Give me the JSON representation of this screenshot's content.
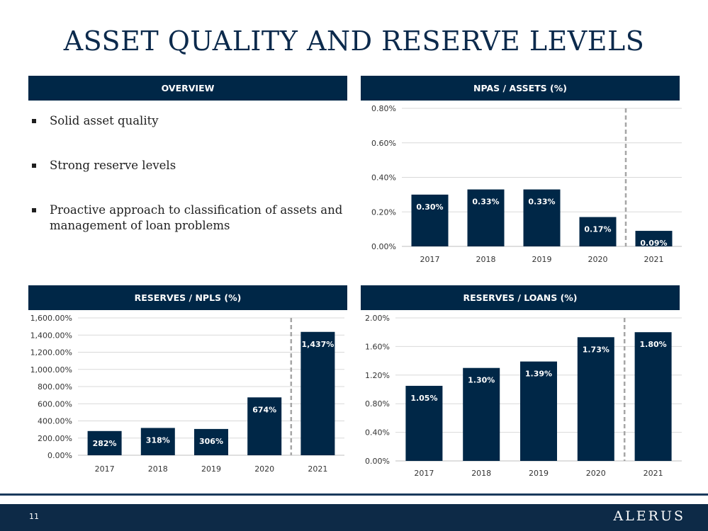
{
  "title": "ASSET QUALITY AND RESERVE LEVELS",
  "overview": {
    "header": "OVERVIEW",
    "bullets": [
      "Solid asset quality",
      "Strong reserve levels",
      "Proactive approach to classification of assets and management of loan problems"
    ]
  },
  "colors": {
    "bar": "#002747",
    "header": "#002747",
    "footer": "#0d2a47",
    "divider": "#a6a6a6",
    "grid": "#d9d9d9"
  },
  "chart_data": [
    {
      "type": "bar",
      "title": "NPAS / ASSETS (%)",
      "categories": [
        "2017",
        "2018",
        "2019",
        "2020",
        "2021"
      ],
      "values": [
        0.3,
        0.33,
        0.33,
        0.17,
        0.09
      ],
      "value_labels": [
        "0.30%",
        "0.33%",
        "0.33%",
        "0.17%",
        "0.09%"
      ],
      "ylim": [
        0,
        0.8
      ],
      "yticks": [
        "0.00%",
        "0.20%",
        "0.40%",
        "0.60%",
        "0.80%"
      ],
      "grid": true,
      "divider_after_category": "2020"
    },
    {
      "type": "bar",
      "title": "RESERVES / NPLS (%)",
      "categories": [
        "2017",
        "2018",
        "2019",
        "2020",
        "2021"
      ],
      "values": [
        282,
        318,
        306,
        674,
        1437
      ],
      "value_labels": [
        "282%",
        "318%",
        "306%",
        "674%",
        "1,437%"
      ],
      "ylim": [
        0,
        1600
      ],
      "yticks": [
        "0.00%",
        "200.00%",
        "400.00%",
        "600.00%",
        "800.00%",
        "1,000.00%",
        "1,200.00%",
        "1,400.00%",
        "1,600.00%"
      ],
      "grid": true,
      "divider_after_category": "2020"
    },
    {
      "type": "bar",
      "title": "RESERVES / LOANS (%)",
      "categories": [
        "2017",
        "2018",
        "2019",
        "2020",
        "2021"
      ],
      "values": [
        1.05,
        1.3,
        1.39,
        1.73,
        1.8
      ],
      "value_labels": [
        "1.05%",
        "1.30%",
        "1.39%",
        "1.73%",
        "1.80%"
      ],
      "ylim": [
        0,
        2.0
      ],
      "yticks": [
        "0.00%",
        "0.40%",
        "0.80%",
        "1.20%",
        "1.60%",
        "2.00%"
      ],
      "grid": true,
      "divider_after_category": "2020"
    }
  ],
  "footer": {
    "page_number": "11",
    "brand": "ALERUS"
  }
}
